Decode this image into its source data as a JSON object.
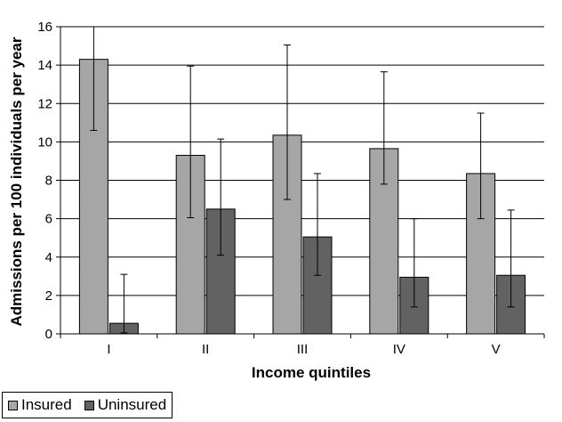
{
  "chart_data": {
    "type": "bar",
    "categories": [
      "I",
      "II",
      "III",
      "IV",
      "V"
    ],
    "series": [
      {
        "name": "Insured",
        "color": "#a6a6a6",
        "values": [
          14.3,
          9.3,
          10.35,
          9.65,
          8.35
        ],
        "error_low": [
          10.6,
          6.05,
          7.0,
          7.8,
          6.0
        ],
        "error_high": [
          16.0,
          13.95,
          15.05,
          13.65,
          11.5
        ]
      },
      {
        "name": "Uninsured",
        "color": "#626262",
        "values": [
          0.55,
          6.5,
          5.05,
          2.95,
          3.05
        ],
        "error_low": [
          0.05,
          4.1,
          3.05,
          1.4,
          1.4
        ],
        "error_high": [
          3.1,
          10.15,
          8.35,
          6.0,
          6.45
        ]
      }
    ],
    "xlabel": "Income quintiles",
    "ylabel": "Admissions per 100 individuals per year",
    "ylim": [
      0,
      16
    ],
    "yticks": [
      "0",
      "2",
      "4",
      "6",
      "8",
      "10",
      "12",
      "14",
      "16"
    ],
    "grid": true,
    "legend_position": "bottom-left"
  }
}
